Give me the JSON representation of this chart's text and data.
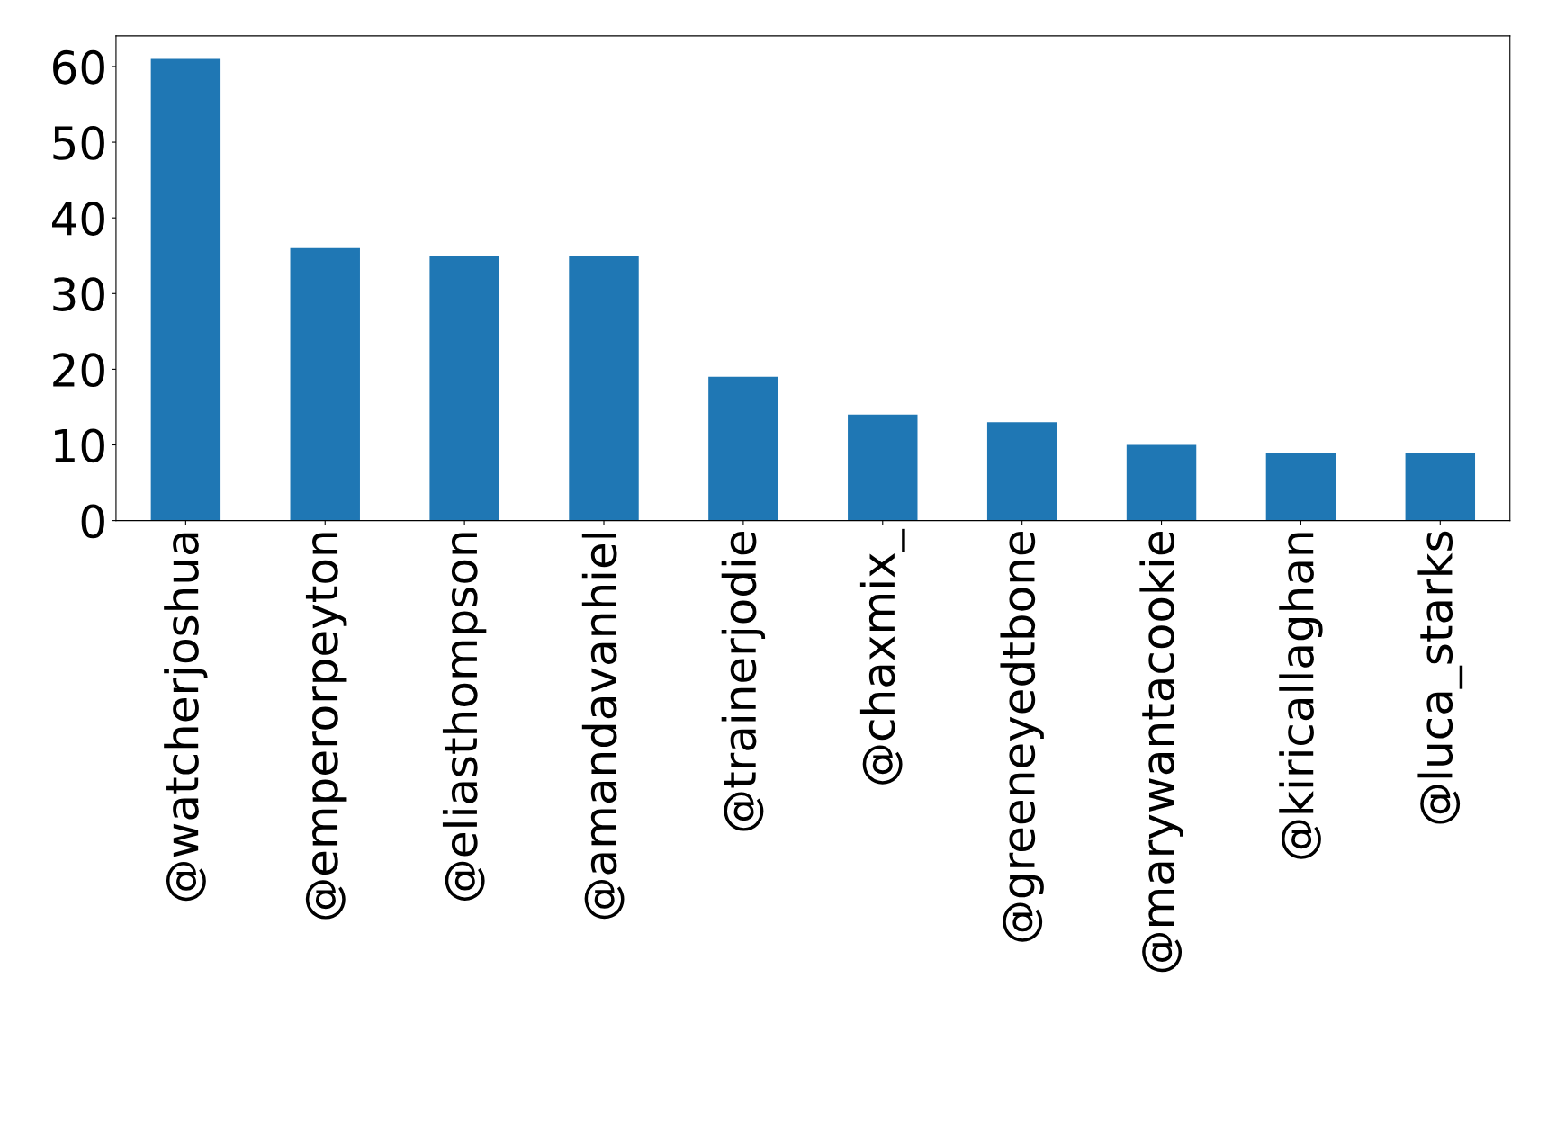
{
  "chart_data": {
    "type": "bar",
    "categories": [
      "@watcherjoshua",
      "@emperorpeyton",
      "@eliasthompson",
      "@amandavanhiel",
      "@trainerjodie",
      "@chaxmix_",
      "@greeneyedtbone",
      "@marywantacookie",
      "@kiricallaghan",
      "@luca_starks"
    ],
    "values": [
      61,
      36,
      35,
      35,
      19,
      14,
      13,
      10,
      9,
      9
    ],
    "color": "#1f77b4",
    "ylim": [
      0,
      64.05
    ],
    "yticks": [
      0,
      10,
      20,
      30,
      40,
      50,
      60
    ],
    "grid": false,
    "legend": false
  }
}
